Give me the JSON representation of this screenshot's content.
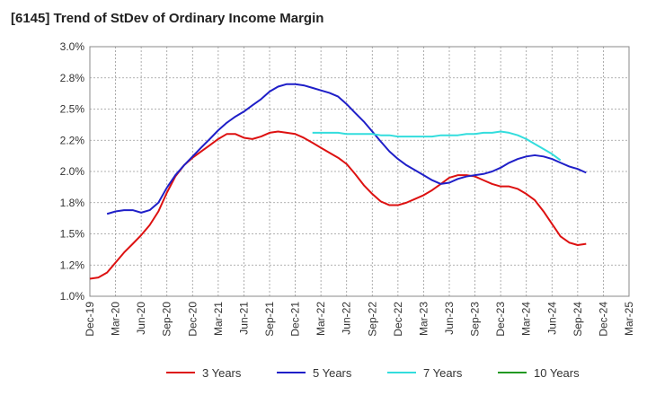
{
  "chart_data": {
    "type": "line",
    "title": "[6145]  Trend of StDev of Ordinary Income Margin",
    "xlabel": "",
    "ylabel": "",
    "x_ticks": [
      "Dec-19",
      "Mar-20",
      "Jun-20",
      "Sep-20",
      "Dec-20",
      "Mar-21",
      "Jun-21",
      "Sep-21",
      "Dec-21",
      "Mar-22",
      "Jun-22",
      "Sep-22",
      "Dec-22",
      "Mar-23",
      "Jun-23",
      "Sep-23",
      "Dec-23",
      "Mar-24",
      "Jun-24",
      "Sep-24",
      "Dec-24",
      "Mar-25"
    ],
    "y_ticks": [
      "1.0%",
      "1.2%",
      "1.5%",
      "1.8%",
      "2.0%",
      "2.2%",
      "2.5%",
      "2.8%",
      "3.0%"
    ],
    "ylim": [
      1.0,
      3.0
    ],
    "grid": true,
    "legend_position": "bottom",
    "series": [
      {
        "name": "3 Years",
        "color": "#dd1111",
        "x": [
          0,
          0.33,
          0.67,
          1,
          1.33,
          1.67,
          2,
          2.33,
          2.67,
          3,
          3.33,
          3.67,
          4,
          4.33,
          4.67,
          5,
          5.33,
          5.67,
          6,
          6.33,
          6.67,
          7,
          7.33,
          7.67,
          8,
          8.33,
          8.67,
          9,
          9.33,
          9.67,
          10,
          10.33,
          10.67,
          11,
          11.33,
          11.67,
          12,
          12.33,
          12.67,
          13,
          13.33,
          13.67,
          14,
          14.33,
          14.67,
          15,
          15.33,
          15.67,
          16,
          16.33,
          16.67,
          17,
          17.33,
          17.67,
          18,
          18.33,
          18.67,
          19,
          19.33,
          19.67,
          20
        ],
        "values": [
          1.14,
          1.15,
          1.19,
          1.27,
          1.35,
          1.42,
          1.49,
          1.57,
          1.68,
          1.83,
          1.96,
          2.05,
          2.11,
          2.16,
          2.21,
          2.26,
          2.3,
          2.3,
          2.27,
          2.26,
          2.28,
          2.31,
          2.32,
          2.31,
          2.3,
          2.27,
          2.23,
          2.19,
          2.15,
          2.11,
          2.06,
          1.98,
          1.89,
          1.82,
          1.76,
          1.73,
          1.73,
          1.75,
          1.78,
          1.81,
          1.85,
          1.9,
          1.95,
          1.97,
          1.97,
          1.96,
          1.93,
          1.9,
          1.88,
          1.88,
          1.86,
          1.82,
          1.77,
          1.68,
          1.58,
          1.48,
          1.43,
          1.41,
          1.42,
          null,
          null
        ]
      },
      {
        "name": "5 Years",
        "color": "#1f1fc8",
        "x": [
          0,
          0.33,
          0.67,
          1,
          1.33,
          1.67,
          2,
          2.33,
          2.67,
          3,
          3.33,
          3.67,
          4,
          4.33,
          4.67,
          5,
          5.33,
          5.67,
          6,
          6.33,
          6.67,
          7,
          7.33,
          7.67,
          8,
          8.33,
          8.67,
          9,
          9.33,
          9.67,
          10,
          10.33,
          10.67,
          11,
          11.33,
          11.67,
          12,
          12.33,
          12.67,
          13,
          13.33,
          13.67,
          14,
          14.33,
          14.67,
          15,
          15.33,
          15.67,
          16,
          16.33,
          16.67,
          17,
          17.33,
          17.67,
          18,
          18.33,
          18.67,
          19,
          19.33,
          19.67,
          20
        ],
        "values": [
          null,
          null,
          1.66,
          1.68,
          1.69,
          1.69,
          1.67,
          1.69,
          1.75,
          1.87,
          1.97,
          2.05,
          2.12,
          2.19,
          2.26,
          2.33,
          2.39,
          2.44,
          2.48,
          2.53,
          2.58,
          2.64,
          2.68,
          2.7,
          2.7,
          2.69,
          2.67,
          2.65,
          2.63,
          2.6,
          2.54,
          2.47,
          2.4,
          2.32,
          2.24,
          2.16,
          2.1,
          2.05,
          2.01,
          1.97,
          1.93,
          1.9,
          1.91,
          1.94,
          1.96,
          1.97,
          1.98,
          2.0,
          2.03,
          2.07,
          2.1,
          2.12,
          2.13,
          2.12,
          2.1,
          2.07,
          2.04,
          2.02,
          1.99,
          null,
          null
        ]
      },
      {
        "name": "7 Years",
        "color": "#33dddd",
        "x": [
          0,
          0.33,
          0.67,
          1,
          1.33,
          1.67,
          2,
          2.33,
          2.67,
          3,
          3.33,
          3.67,
          4,
          4.33,
          4.67,
          5,
          5.33,
          5.67,
          6,
          6.33,
          6.67,
          7,
          7.33,
          7.67,
          8,
          8.33,
          8.67,
          9,
          9.33,
          9.67,
          10,
          10.33,
          10.67,
          11,
          11.33,
          11.67,
          12,
          12.33,
          12.67,
          13,
          13.33,
          13.67,
          14,
          14.33,
          14.67,
          15,
          15.33,
          15.67,
          16,
          16.33,
          16.67,
          17,
          17.33,
          17.67,
          18,
          18.33,
          18.67,
          19,
          19.33,
          19.67,
          20
        ],
        "values": [
          null,
          null,
          null,
          null,
          null,
          null,
          null,
          null,
          null,
          null,
          null,
          null,
          null,
          null,
          null,
          null,
          null,
          null,
          null,
          null,
          null,
          null,
          null,
          null,
          null,
          null,
          2.31,
          2.31,
          2.31,
          2.31,
          2.3,
          2.3,
          2.3,
          2.3,
          2.29,
          2.29,
          2.28,
          2.28,
          2.28,
          2.28,
          2.28,
          2.29,
          2.29,
          2.29,
          2.3,
          2.3,
          2.31,
          2.31,
          2.32,
          2.31,
          2.29,
          2.26,
          2.22,
          2.18,
          2.14,
          2.09,
          null,
          null,
          null,
          null,
          null
        ]
      },
      {
        "name": "10 Years",
        "color": "#229922",
        "x": [],
        "values": []
      }
    ]
  }
}
